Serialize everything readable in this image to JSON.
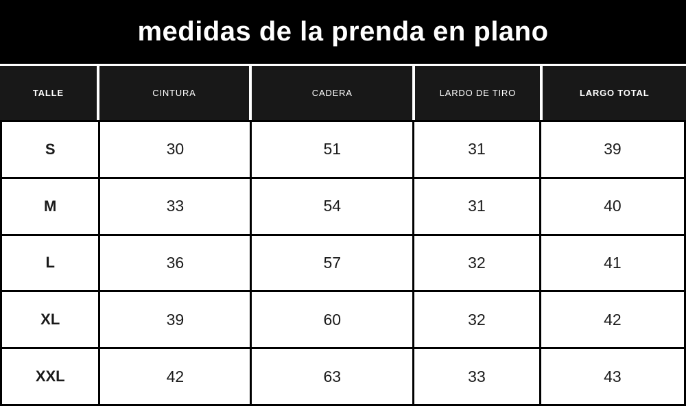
{
  "title": "medidas de la prenda en plano",
  "colors": {
    "banner_bg": "#000000",
    "header_cell_bg": "#181818",
    "header_text": "#ffffff",
    "cell_bg": "#ffffff",
    "cell_text": "#1a1a1a",
    "border": "#000000"
  },
  "chart_data": {
    "type": "table",
    "title": "medidas de la prenda en plano",
    "columns": [
      "TALLE",
      "CINTURA",
      "CADERA",
      "LARDO DE TIRO",
      "LARGO TOTAL"
    ],
    "rows": [
      [
        "S",
        "30",
        "51",
        "31",
        "39"
      ],
      [
        "M",
        "33",
        "54",
        "31",
        "40"
      ],
      [
        "L",
        "36",
        "57",
        "32",
        "41"
      ],
      [
        "XL",
        "39",
        "60",
        "32",
        "42"
      ],
      [
        "XXL",
        "42",
        "63",
        "33",
        "43"
      ]
    ]
  }
}
